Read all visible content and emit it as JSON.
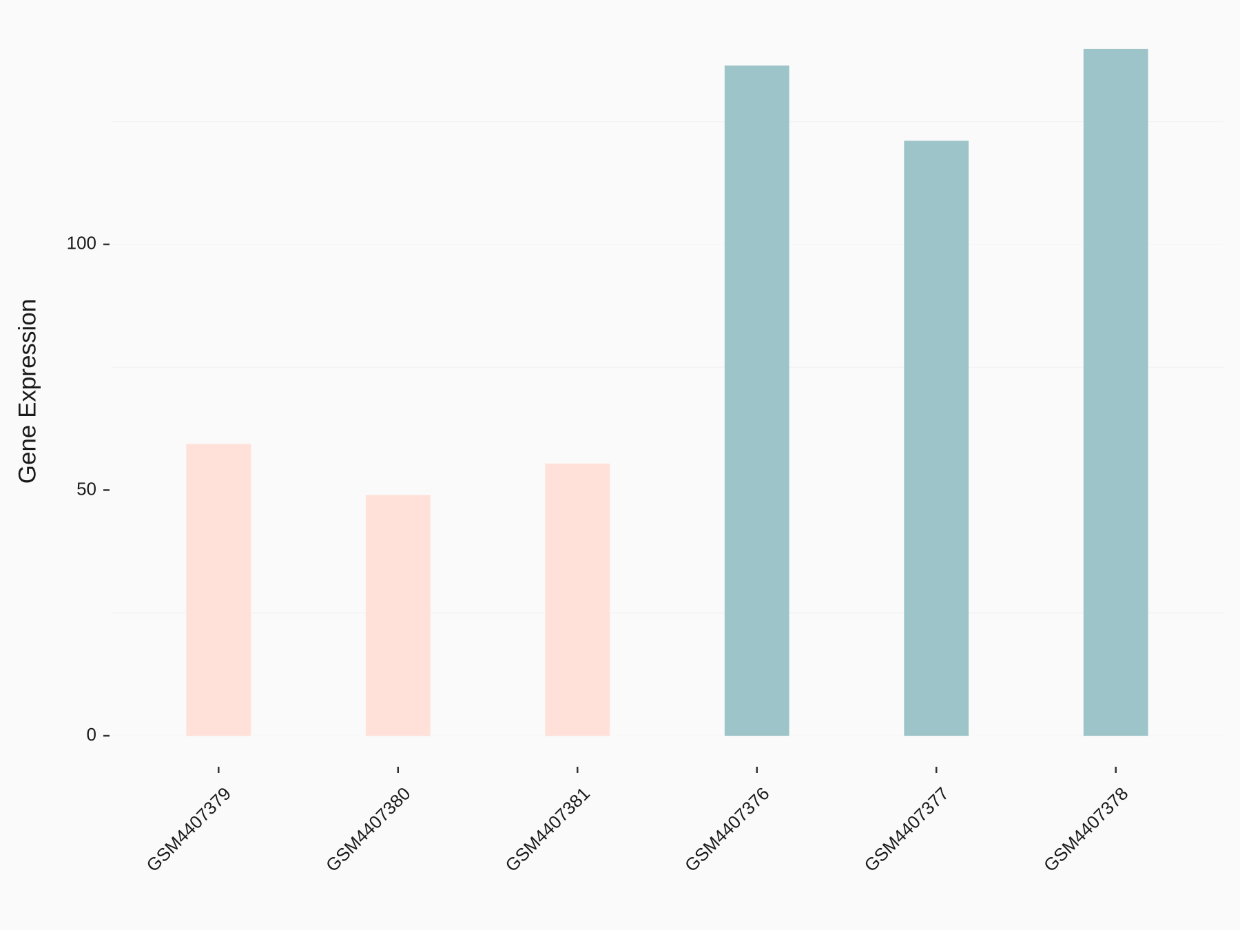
{
  "chart_data": {
    "type": "bar",
    "y_label": "Gene Expression",
    "categories": [
      "GSM4407379",
      "GSM4407380",
      "GSM4407381",
      "GSM4407376",
      "GSM4407377",
      "GSM4407378"
    ],
    "values": [
      59.4,
      49.0,
      55.4,
      136.4,
      121.1,
      139.8
    ],
    "colors": [
      "#FFE1D9",
      "#FFE1D9",
      "#FFE1D9",
      "#9DC4C8",
      "#9DC4C8",
      "#9DC4C8"
    ],
    "ylim": [
      -7,
      146.8
    ],
    "yticks": [
      0,
      50,
      100
    ],
    "minor_grid": [
      25,
      75,
      125
    ],
    "grid": true
  }
}
